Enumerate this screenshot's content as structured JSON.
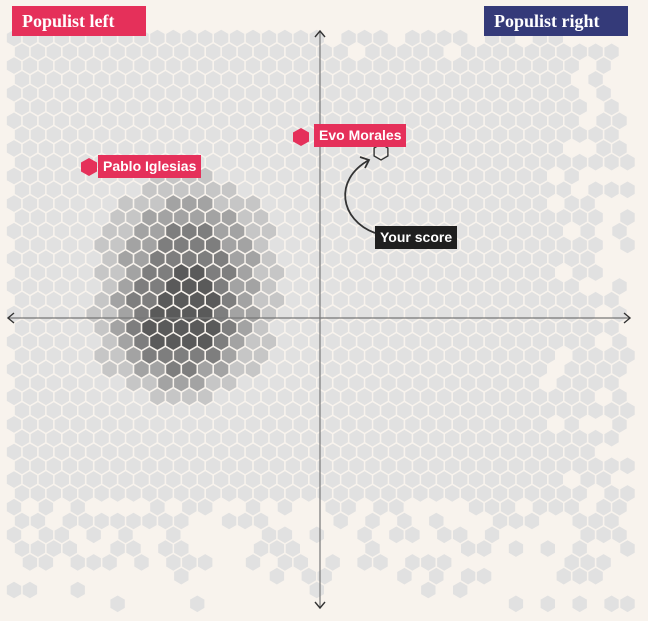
{
  "corner_labels": {
    "left": "Populist left",
    "right": "Populist right"
  },
  "annotations": {
    "pablo": "Pablo Iglesias",
    "evo": "Evo Morales",
    "score": "Your score"
  },
  "colors": {
    "background": "#f8f3ed",
    "left_label": "#e5305a",
    "right_label": "#343a79",
    "politician_marker": "#e5305a",
    "score_label": "#1f1f1f",
    "axis": "#777777",
    "hex_light": "#e1e1e1",
    "hex_mid": "#c6c6c6",
    "hex_dark": "#a3a3a3",
    "hex_darker": "#7e7e7e",
    "hex_darkest": "#5a5a5a"
  },
  "chart_data": {
    "type": "heatmap",
    "description_of_axes": "",
    "xlim": [
      -1,
      1
    ],
    "ylim": [
      -1,
      1
    ],
    "grid": false,
    "density_levels": [
      0,
      1,
      2,
      3,
      4,
      5
    ],
    "points": [
      {
        "name": "Pablo Iglesias",
        "x": -0.74,
        "y": 0.5
      },
      {
        "name": "Evo Morales",
        "x": -0.06,
        "y": 0.59
      },
      {
        "name": "Your score",
        "x": 0.2,
        "y": 0.54
      }
    ]
  }
}
